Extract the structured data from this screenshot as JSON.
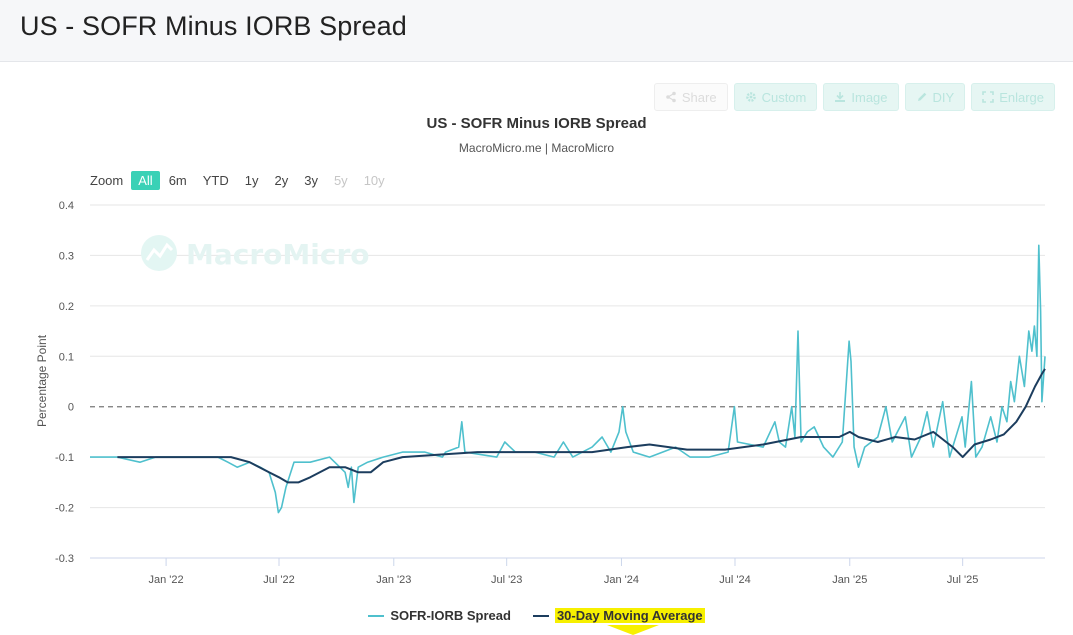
{
  "page": {
    "title": "US - SOFR Minus IORB Spread"
  },
  "toolbar": {
    "buttons": [
      {
        "label": "Share",
        "icon": "share-icon"
      },
      {
        "label": "Custom",
        "icon": "gear-icon"
      },
      {
        "label": "Image",
        "icon": "download-icon"
      },
      {
        "label": "DIY",
        "icon": "pencil-icon"
      },
      {
        "label": "Enlarge",
        "icon": "expand-icon"
      }
    ]
  },
  "zoom": {
    "label": "Zoom",
    "options": [
      "All",
      "6m",
      "YTD",
      "1y",
      "2y",
      "3y",
      "5y",
      "10y"
    ],
    "active": "All",
    "disabled": [
      "5y",
      "10y"
    ]
  },
  "watermark": {
    "text": "MacroMicro"
  },
  "colors": {
    "spread": "#4fc0cd",
    "moving_average": "#1c3d5e",
    "accent": "#3ad1b6",
    "highlight": "#f7f000"
  },
  "chart_data": {
    "type": "line",
    "title": "US - SOFR Minus IORB Spread",
    "subtitle": "MacroMicro.me | MacroMicro",
    "ylabel": "Percentage Point",
    "xlabel": "",
    "ylim": [
      -0.3,
      0.4
    ],
    "xlim": [
      "2021-09-01",
      "2025-11-10"
    ],
    "yticks": [
      -0.3,
      -0.2,
      -0.1,
      0,
      0.1,
      0.2,
      0.3,
      0.4
    ],
    "ytick_labels": [
      "-0.3",
      "-0.2",
      "-0.1",
      "0",
      "0.1",
      "0.2",
      "0.3",
      "0.4"
    ],
    "xticks": [
      "2022-01-01",
      "2022-07-01",
      "2023-01-01",
      "2023-07-01",
      "2024-01-01",
      "2024-07-01",
      "2025-01-01",
      "2025-07-01"
    ],
    "xtick_labels": [
      "Jan '22",
      "Jul '22",
      "Jan '23",
      "Jul '23",
      "Jan '24",
      "Jul '24",
      "Jan '25",
      "Jul '25"
    ],
    "zero_line": "dashed",
    "legend_position": "bottom-center",
    "series": [
      {
        "name": "SOFR-IORB Spread",
        "points": [
          [
            "2021-09-01",
            -0.1
          ],
          [
            "2021-10-15",
            -0.1
          ],
          [
            "2021-11-20",
            -0.11
          ],
          [
            "2021-12-15",
            -0.1
          ],
          [
            "2022-01-20",
            -0.1
          ],
          [
            "2022-02-20",
            -0.1
          ],
          [
            "2022-03-25",
            -0.1
          ],
          [
            "2022-04-10",
            -0.11
          ],
          [
            "2022-04-25",
            -0.12
          ],
          [
            "2022-05-15",
            -0.11
          ],
          [
            "2022-06-01",
            -0.12
          ],
          [
            "2022-06-15",
            -0.13
          ],
          [
            "2022-06-25",
            -0.17
          ],
          [
            "2022-06-30",
            -0.21
          ],
          [
            "2022-07-05",
            -0.2
          ],
          [
            "2022-07-12",
            -0.16
          ],
          [
            "2022-07-25",
            -0.11
          ],
          [
            "2022-08-20",
            -0.11
          ],
          [
            "2022-09-20",
            -0.1
          ],
          [
            "2022-10-15",
            -0.13
          ],
          [
            "2022-10-20",
            -0.16
          ],
          [
            "2022-10-25",
            -0.12
          ],
          [
            "2022-10-29",
            -0.19
          ],
          [
            "2022-11-05",
            -0.12
          ],
          [
            "2022-11-20",
            -0.11
          ],
          [
            "2022-12-15",
            -0.1
          ],
          [
            "2023-01-15",
            -0.09
          ],
          [
            "2023-02-20",
            -0.09
          ],
          [
            "2023-03-20",
            -0.1
          ],
          [
            "2023-03-25",
            -0.09
          ],
          [
            "2023-04-15",
            -0.08
          ],
          [
            "2023-04-20",
            -0.03
          ],
          [
            "2023-04-25",
            -0.09
          ],
          [
            "2023-06-15",
            -0.1
          ],
          [
            "2023-06-28",
            -0.07
          ],
          [
            "2023-07-15",
            -0.09
          ],
          [
            "2023-08-15",
            -0.09
          ],
          [
            "2023-09-15",
            -0.1
          ],
          [
            "2023-09-30",
            -0.07
          ],
          [
            "2023-10-15",
            -0.1
          ],
          [
            "2023-11-15",
            -0.08
          ],
          [
            "2023-12-01",
            -0.06
          ],
          [
            "2023-12-15",
            -0.09
          ],
          [
            "2023-12-28",
            -0.05
          ],
          [
            "2024-01-03",
            0.0
          ],
          [
            "2024-01-08",
            -0.05
          ],
          [
            "2024-01-20",
            -0.09
          ],
          [
            "2024-02-15",
            -0.1
          ],
          [
            "2024-03-28",
            -0.08
          ],
          [
            "2024-04-20",
            -0.1
          ],
          [
            "2024-05-20",
            -0.1
          ],
          [
            "2024-06-20",
            -0.09
          ],
          [
            "2024-06-30",
            0.0
          ],
          [
            "2024-07-05",
            -0.07
          ],
          [
            "2024-08-15",
            -0.08
          ],
          [
            "2024-09-03",
            -0.03
          ],
          [
            "2024-09-10",
            -0.07
          ],
          [
            "2024-09-20",
            -0.08
          ],
          [
            "2024-09-30",
            0.0
          ],
          [
            "2024-10-05",
            -0.06
          ],
          [
            "2024-10-10",
            0.15
          ],
          [
            "2024-10-15",
            -0.07
          ],
          [
            "2024-10-25",
            -0.05
          ],
          [
            "2024-11-05",
            -0.04
          ],
          [
            "2024-11-20",
            -0.08
          ],
          [
            "2024-12-05",
            -0.1
          ],
          [
            "2024-12-20",
            -0.07
          ],
          [
            "2024-12-31",
            0.13
          ],
          [
            "2025-01-03",
            0.09
          ],
          [
            "2025-01-08",
            -0.08
          ],
          [
            "2025-01-15",
            -0.12
          ],
          [
            "2025-01-25",
            -0.08
          ],
          [
            "2025-02-15",
            -0.06
          ],
          [
            "2025-02-28",
            0.0
          ],
          [
            "2025-03-10",
            -0.07
          ],
          [
            "2025-03-31",
            -0.02
          ],
          [
            "2025-04-10",
            -0.1
          ],
          [
            "2025-04-25",
            -0.06
          ],
          [
            "2025-05-05",
            -0.01
          ],
          [
            "2025-05-15",
            -0.08
          ],
          [
            "2025-05-30",
            0.01
          ],
          [
            "2025-06-10",
            -0.1
          ],
          [
            "2025-06-30",
            -0.02
          ],
          [
            "2025-07-05",
            -0.08
          ],
          [
            "2025-07-15",
            0.05
          ],
          [
            "2025-07-22",
            -0.1
          ],
          [
            "2025-08-01",
            -0.08
          ],
          [
            "2025-08-15",
            -0.02
          ],
          [
            "2025-08-25",
            -0.07
          ],
          [
            "2025-09-02",
            0.0
          ],
          [
            "2025-09-10",
            -0.03
          ],
          [
            "2025-09-16",
            0.05
          ],
          [
            "2025-09-22",
            0.01
          ],
          [
            "2025-09-30",
            0.1
          ],
          [
            "2025-10-08",
            0.04
          ],
          [
            "2025-10-15",
            0.15
          ],
          [
            "2025-10-20",
            0.11
          ],
          [
            "2025-10-24",
            0.16
          ],
          [
            "2025-10-28",
            0.1
          ],
          [
            "2025-10-31",
            0.32
          ],
          [
            "2025-11-03",
            0.19
          ],
          [
            "2025-11-05",
            0.01
          ],
          [
            "2025-11-10",
            0.1
          ]
        ]
      },
      {
        "name": "30-Day Moving Average",
        "points": [
          [
            "2021-10-15",
            -0.1
          ],
          [
            "2022-01-15",
            -0.1
          ],
          [
            "2022-04-15",
            -0.1
          ],
          [
            "2022-05-15",
            -0.11
          ],
          [
            "2022-06-15",
            -0.13
          ],
          [
            "2022-07-01",
            -0.14
          ],
          [
            "2022-07-15",
            -0.15
          ],
          [
            "2022-08-01",
            -0.15
          ],
          [
            "2022-08-20",
            -0.14
          ],
          [
            "2022-09-20",
            -0.12
          ],
          [
            "2022-10-15",
            -0.12
          ],
          [
            "2022-11-05",
            -0.13
          ],
          [
            "2022-11-25",
            -0.13
          ],
          [
            "2022-12-15",
            -0.11
          ],
          [
            "2023-01-15",
            -0.1
          ],
          [
            "2023-03-15",
            -0.095
          ],
          [
            "2023-05-15",
            -0.09
          ],
          [
            "2023-07-15",
            -0.09
          ],
          [
            "2023-09-15",
            -0.09
          ],
          [
            "2023-11-15",
            -0.09
          ],
          [
            "2024-01-10",
            -0.08
          ],
          [
            "2024-02-15",
            -0.075
          ],
          [
            "2024-04-15",
            -0.085
          ],
          [
            "2024-06-15",
            -0.085
          ],
          [
            "2024-08-15",
            -0.075
          ],
          [
            "2024-10-15",
            -0.06
          ],
          [
            "2024-12-15",
            -0.06
          ],
          [
            "2025-01-01",
            -0.05
          ],
          [
            "2025-01-15",
            -0.06
          ],
          [
            "2025-02-15",
            -0.07
          ],
          [
            "2025-03-15",
            -0.06
          ],
          [
            "2025-04-15",
            -0.065
          ],
          [
            "2025-05-15",
            -0.05
          ],
          [
            "2025-06-15",
            -0.08
          ],
          [
            "2025-07-01",
            -0.1
          ],
          [
            "2025-07-20",
            -0.075
          ],
          [
            "2025-08-15",
            -0.065
          ],
          [
            "2025-09-05",
            -0.055
          ],
          [
            "2025-09-25",
            -0.03
          ],
          [
            "2025-10-10",
            0.0
          ],
          [
            "2025-10-25",
            0.04
          ],
          [
            "2025-11-05",
            0.065
          ],
          [
            "2025-11-10",
            0.075
          ]
        ]
      }
    ]
  }
}
